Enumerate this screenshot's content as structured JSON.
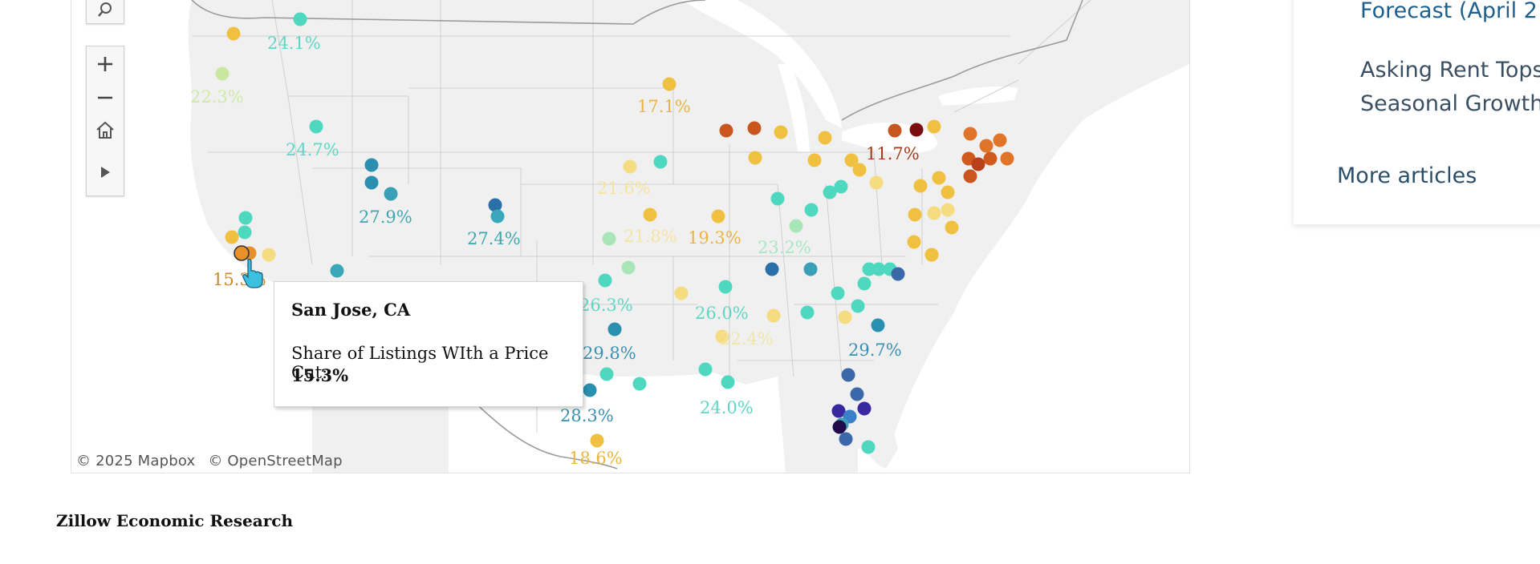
{
  "map": {
    "attribution": [
      "© 2025 Mapbox",
      "© OpenStreetMap"
    ],
    "tools": [
      "search-icon",
      "zoom-in-icon",
      "zoom-out-icon",
      "home-icon",
      "play-icon"
    ],
    "labels": [
      {
        "text": "24.1%",
        "color": "#5fd6c4"
      },
      {
        "text": "22.3%",
        "color": "#cfe9a8"
      },
      {
        "text": "24.7%",
        "color": "#5fd6c4"
      },
      {
        "text": "27.9%",
        "color": "#3fa7b2"
      },
      {
        "text": "27.4%",
        "color": "#3fa7b2"
      },
      {
        "text": "17.1%",
        "color": "#e8b640"
      },
      {
        "text": "11.7%",
        "color": "#a33a1a"
      },
      {
        "text": "21.6%",
        "color": "#f5e3a2"
      },
      {
        "text": "21.8%",
        "color": "#f5e3a2"
      },
      {
        "text": "19.3%",
        "color": "#e8b640"
      },
      {
        "text": "23.2%",
        "color": "#a8e6c6"
      },
      {
        "text": "15.3%",
        "color": "#cc8a2a"
      },
      {
        "text": "26.3%",
        "color": "#5fd6c4"
      },
      {
        "text": "26.0%",
        "color": "#5fd6c4"
      },
      {
        "text": "22.4%",
        "color": "#f0e6a8"
      },
      {
        "text": "29.8%",
        "color": "#3b8fb0"
      },
      {
        "text": "29.7%",
        "color": "#3b8fb0"
      },
      {
        "text": "28.3%",
        "color": "#3b8fb0"
      },
      {
        "text": "24.0%",
        "color": "#5fd6c4"
      },
      {
        "text": "18.6%",
        "color": "#e8b640"
      }
    ]
  },
  "tooltip": {
    "title": "San Jose, CA",
    "label": "Share of Listings WIth a Price Cut:",
    "value": "15.3%"
  },
  "sidebar": {
    "forecast": "Forecast (April 2",
    "asking_line1": "Asking Rent Tops",
    "asking_line2": "Seasonal Growth",
    "more": "More articles"
  },
  "footer": {
    "source": "Zillow Economic Research"
  }
}
